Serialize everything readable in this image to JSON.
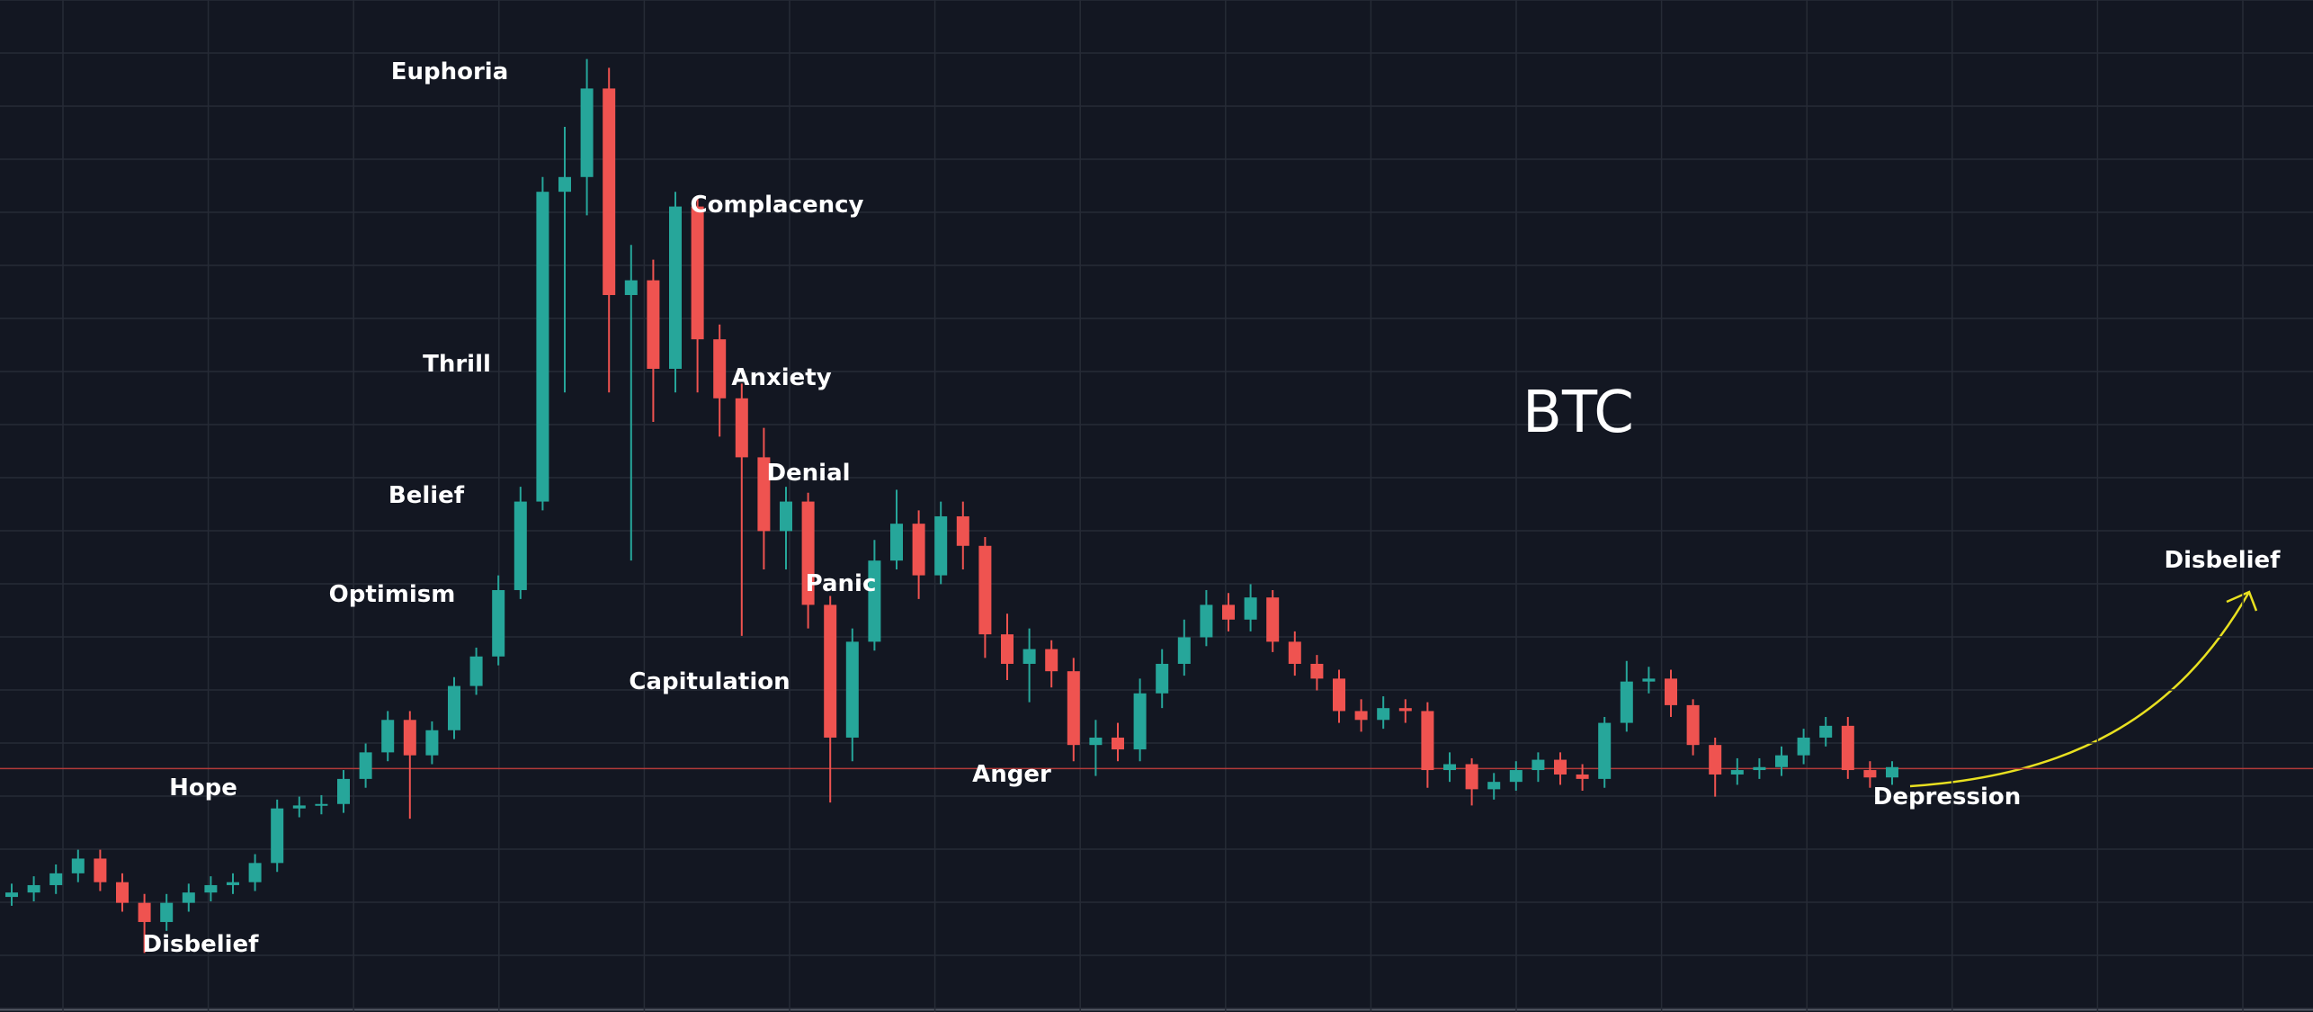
{
  "chart_data": {
    "type": "candlestick",
    "title": "BTC",
    "annotations": [
      "Euphoria",
      "Complacency",
      "Thrill",
      "Anxiety",
      "Belief",
      "Denial",
      "Optimism",
      "Panic",
      "Capitulation",
      "Hope",
      "Anger",
      "Disbelief",
      "Depression",
      "Disbelief"
    ],
    "open": [
      78,
      81,
      86,
      94,
      104,
      88,
      74,
      61,
      74,
      81,
      86,
      88,
      101,
      138,
      140,
      141,
      158,
      176,
      198,
      174,
      191,
      221,
      241,
      286,
      346,
      556,
      566,
      626,
      486,
      496,
      436,
      546,
      456,
      416,
      376,
      326,
      346,
      276,
      186,
      251,
      306,
      331,
      296,
      336,
      316,
      256,
      236,
      246,
      231,
      181,
      186,
      178,
      216,
      236,
      254,
      276,
      266,
      281,
      251,
      236,
      226,
      204,
      198,
      206,
      204,
      164,
      168,
      151,
      156,
      164,
      171,
      161,
      158,
      196,
      224,
      226,
      208,
      181,
      161,
      164,
      166,
      174,
      186,
      194,
      164,
      159
    ],
    "high": [
      87,
      92,
      100,
      110,
      110,
      94,
      80,
      80,
      87,
      92,
      94,
      107,
      144,
      146,
      147,
      164,
      182,
      204,
      204,
      197,
      227,
      247,
      296,
      356,
      566,
      600,
      646,
      640,
      520,
      510,
      556,
      552,
      466,
      426,
      396,
      356,
      352,
      282,
      260,
      320,
      354,
      340,
      346,
      346,
      322,
      270,
      260,
      252,
      240,
      198,
      196,
      226,
      246,
      266,
      286,
      284,
      290,
      286,
      258,
      242,
      232,
      212,
      214,
      212,
      210,
      176,
      172,
      162,
      170,
      176,
      176,
      168,
      200,
      238,
      234,
      232,
      212,
      186,
      172,
      172,
      180,
      192,
      200,
      200,
      170,
      170
    ],
    "low": [
      72,
      75,
      80,
      88,
      82,
      68,
      40,
      55,
      68,
      75,
      80,
      82,
      95,
      132,
      134,
      135,
      152,
      170,
      131,
      168,
      185,
      215,
      235,
      280,
      340,
      420,
      540,
      420,
      306,
      400,
      420,
      420,
      390,
      255,
      300,
      300,
      260,
      142,
      170,
      245,
      300,
      280,
      290,
      300,
      240,
      225,
      210,
      220,
      170,
      160,
      170,
      170,
      206,
      228,
      248,
      258,
      258,
      244,
      228,
      218,
      196,
      190,
      192,
      196,
      152,
      156,
      140,
      144,
      150,
      156,
      154,
      150,
      152,
      190,
      216,
      200,
      174,
      146,
      154,
      158,
      160,
      168,
      180,
      158,
      152,
      154
    ],
    "close": [
      81,
      86,
      94,
      104,
      88,
      74,
      61,
      74,
      81,
      86,
      88,
      101,
      138,
      140,
      141,
      158,
      176,
      198,
      174,
      191,
      221,
      241,
      286,
      346,
      556,
      566,
      626,
      486,
      496,
      436,
      546,
      456,
      416,
      376,
      326,
      346,
      276,
      186,
      251,
      306,
      331,
      296,
      336,
      316,
      256,
      236,
      246,
      231,
      181,
      186,
      178,
      216,
      236,
      254,
      276,
      266,
      281,
      251,
      236,
      226,
      204,
      198,
      206,
      204,
      164,
      168,
      151,
      156,
      164,
      171,
      161,
      158,
      196,
      224,
      226,
      208,
      181,
      161,
      164,
      166,
      174,
      186,
      194,
      164,
      159,
      166
    ],
    "ylim": [
      0,
      686
    ],
    "up_color": "#26a69a",
    "down_color": "#ef5350",
    "price_line": 165,
    "price_line_color": "#b23a3a",
    "grid": true
  }
}
